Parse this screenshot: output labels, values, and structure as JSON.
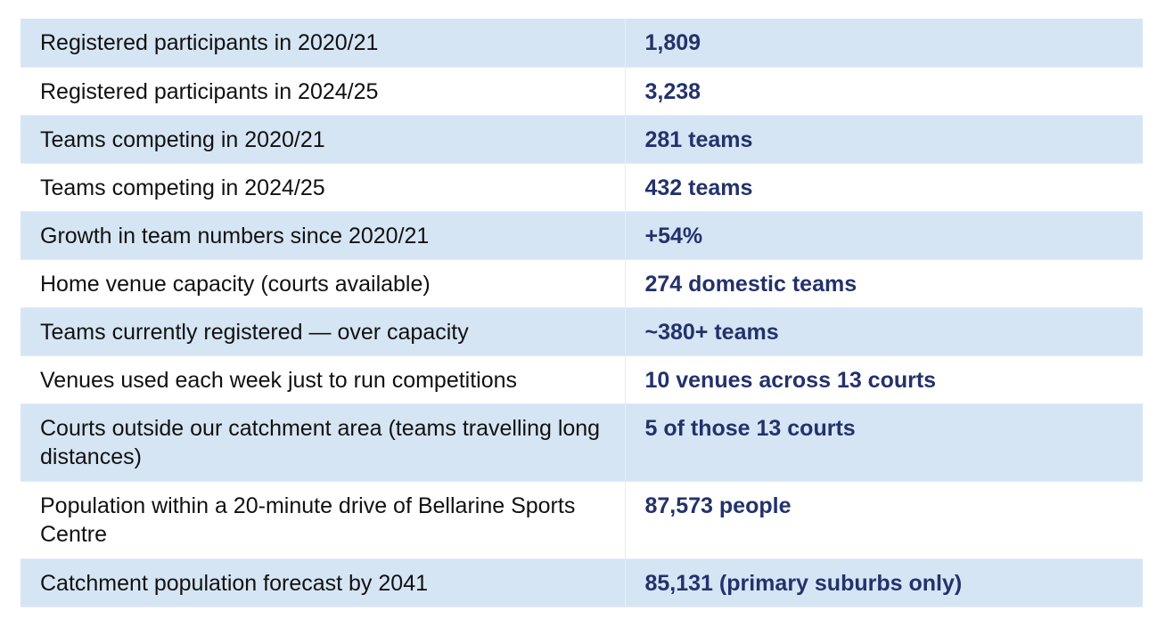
{
  "table": {
    "rows": [
      {
        "label": "Registered participants in 2020/21",
        "value": "1,809"
      },
      {
        "label": "Registered participants in 2024/25",
        "value": "3,238"
      },
      {
        "label": "Teams competing in 2020/21",
        "value": "281 teams"
      },
      {
        "label": "Teams competing in 2024/25",
        "value": "432 teams"
      },
      {
        "label": "Growth in team numbers since 2020/21",
        "value": "+54%"
      },
      {
        "label": "Home venue capacity (courts available)",
        "value": "274 domestic teams"
      },
      {
        "label": "Teams currently registered — over capacity",
        "value": "~380+ teams"
      },
      {
        "label": "Venues used each week just to run competitions",
        "value": "10 venues across 13 courts"
      },
      {
        "label": "Courts outside our catchment area (teams travelling long distances)",
        "value": "5 of those 13 courts"
      },
      {
        "label": "Population within a 20-minute drive of Bellarine Sports Centre",
        "value": "87,573 people"
      },
      {
        "label": "Catchment population forecast by 2041",
        "value": "85,131 (primary suburbs only)"
      }
    ],
    "colors": {
      "shaded_row": "#d6e5f4",
      "plain_row": "#ffffff",
      "value_text": "#23326b",
      "label_text": "#111111"
    }
  }
}
